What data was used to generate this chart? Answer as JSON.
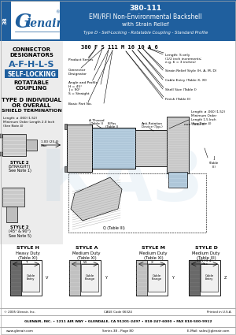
{
  "title_number": "380-111",
  "title_line1": "EMI/RFI Non-Environmental Backshell",
  "title_line2": "with Strain Relief",
  "title_line3": "Type D - Self-Locking - Rotatable Coupling - Standard Profile",
  "header_bg": "#1f5f9e",
  "page_num": "38",
  "afhlstext": "A-F-H-L-S",
  "self_locking_bg": "#1f5f9e",
  "part_number_label": "380 F S 111 M 16 10 A 6",
  "footer_address": "GLENAIR, INC. • 1211 AIR WAY • GLENDALE, CA 91201-2497 • 818-247-6000 • FAX 818-500-9912",
  "footer_web": "www.glenair.com",
  "footer_series": "Series 38 - Page 80",
  "footer_email": "E-Mail: sales@glenair.com",
  "footer_copyright": "© 2005 Glenair, Inc.",
  "footer_cage": "CAGE Code 06324",
  "footer_printed": "Printed in U.S.A.",
  "bg_color": "#ffffff",
  "watermark_color": "#aac8e0",
  "watermark_alpha": 0.18
}
